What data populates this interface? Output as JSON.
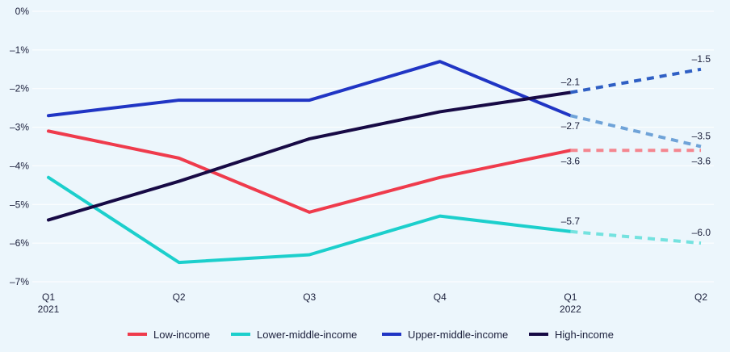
{
  "chart_data": {
    "type": "line",
    "title": "",
    "xlabel": "",
    "ylabel": "",
    "x": [
      {
        "label": "Q1",
        "sublabel": "2021"
      },
      {
        "label": "Q2",
        "sublabel": ""
      },
      {
        "label": "Q3",
        "sublabel": ""
      },
      {
        "label": "Q4",
        "sublabel": ""
      },
      {
        "label": "Q1",
        "sublabel": "2022"
      },
      {
        "label": "Q2",
        "sublabel": ""
      }
    ],
    "ylim": [
      -7,
      0
    ],
    "yticks": [
      {
        "value": 0,
        "label": "0%"
      },
      {
        "value": -1,
        "label": "–1%"
      },
      {
        "value": -2,
        "label": "–2%"
      },
      {
        "value": -3,
        "label": "–3%"
      },
      {
        "value": -4,
        "label": "–4%"
      },
      {
        "value": -5,
        "label": "–5%"
      },
      {
        "value": -6,
        "label": "–6%"
      },
      {
        "value": -7,
        "label": "–7%"
      }
    ],
    "grid": true,
    "legend": "bottom",
    "forecast_from_index": 4,
    "series": [
      {
        "name": "Low-income",
        "color": "#ef3b4c",
        "forecast_color": "#f4868f",
        "values": [
          -3.1,
          -3.8,
          -5.2,
          -4.3,
          -3.6,
          -3.6
        ],
        "labels": [
          {
            "index": 4,
            "text": "–3.6",
            "pos": "below"
          },
          {
            "index": 5,
            "text": "–3.6",
            "pos": "below"
          }
        ]
      },
      {
        "name": "Lower-middle-income",
        "color": "#1ccfcc",
        "forecast_color": "#74e2df",
        "values": [
          -4.3,
          -6.5,
          -6.3,
          -5.3,
          -5.7,
          -6.0
        ],
        "labels": [
          {
            "index": 4,
            "text": "–5.7",
            "pos": "above"
          },
          {
            "index": 5,
            "text": "–6.0",
            "pos": "above"
          }
        ]
      },
      {
        "name": "Upper-middle-income",
        "color": "#2035c4",
        "forecast_color": "#6fa3d8",
        "values": [
          -2.7,
          -2.3,
          -2.3,
          -1.3,
          -2.7,
          -3.5
        ],
        "labels": [
          {
            "index": 4,
            "text": "–2.7",
            "pos": "below"
          },
          {
            "index": 5,
            "text": "–3.5",
            "pos": "above"
          }
        ]
      },
      {
        "name": "High-income",
        "color": "#170a45",
        "forecast_color": "#2f5fc4",
        "values": [
          -5.4,
          -4.4,
          -3.3,
          -2.6,
          -2.1,
          -1.5
        ],
        "labels": [
          {
            "index": 4,
            "text": "–2.1",
            "pos": "above"
          },
          {
            "index": 5,
            "text": "–1.5",
            "pos": "above"
          }
        ]
      }
    ]
  }
}
